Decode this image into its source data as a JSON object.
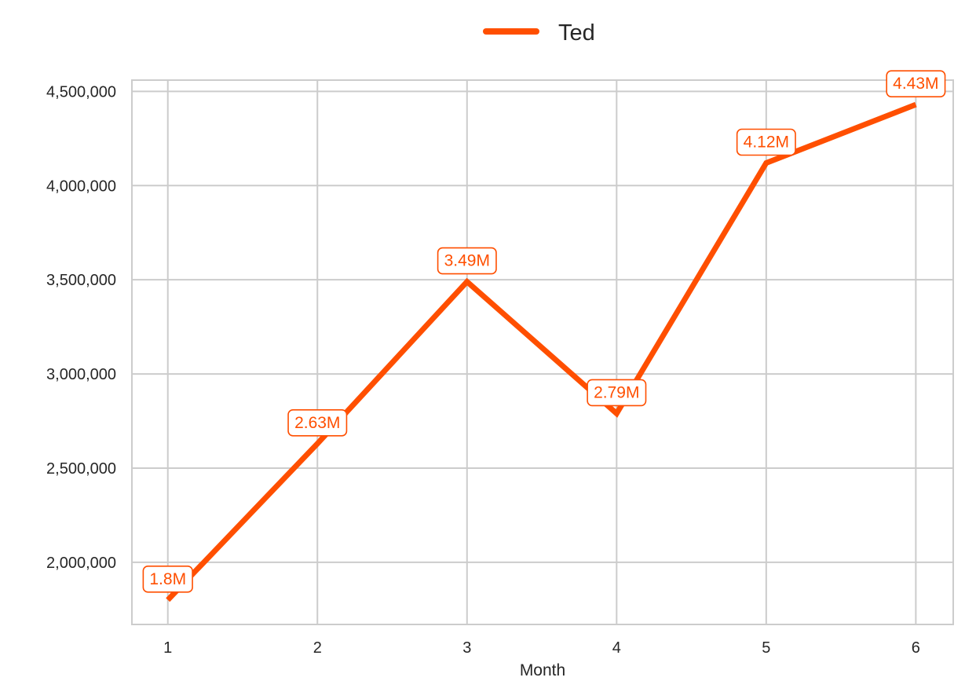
{
  "chart_data": {
    "type": "line",
    "title": "",
    "xlabel": "Month",
    "ylabel": "",
    "x": [
      1,
      2,
      3,
      4,
      5,
      6
    ],
    "x_ticks": [
      "1",
      "2",
      "3",
      "4",
      "5",
      "6"
    ],
    "y_ticks": [
      "2,000,000",
      "2,500,000",
      "3,000,000",
      "3,500,000",
      "4,000,000",
      "4,500,000"
    ],
    "y_tick_values": [
      2000000,
      2500000,
      3000000,
      3500000,
      4000000,
      4500000
    ],
    "ylim": [
      1670000,
      4560000
    ],
    "xlim": [
      0.76,
      6.25
    ],
    "grid": true,
    "legend_position": "top-center",
    "series": [
      {
        "name": "Ted",
        "color": "#FF4F00",
        "values": [
          1800000,
          2630000,
          3490000,
          2790000,
          4120000,
          4430000
        ],
        "labels": [
          "1.8M",
          "2.63M",
          "3.49M",
          "2.79M",
          "4.12M",
          "4.43M"
        ]
      }
    ]
  }
}
